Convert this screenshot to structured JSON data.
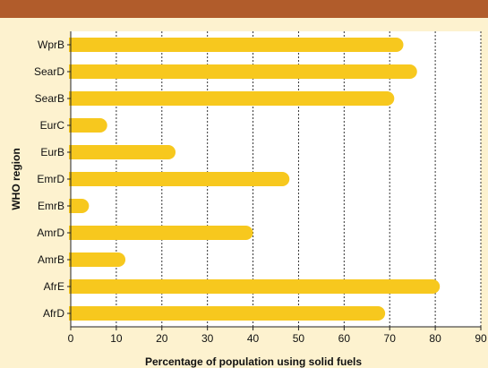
{
  "chart_data": {
    "type": "bar",
    "orientation": "horizontal",
    "categories": [
      "WprB",
      "SearD",
      "SearB",
      "EurC",
      "EurB",
      "EmrD",
      "EmrB",
      "AmrD",
      "AmrB",
      "AfrE",
      "AfrD"
    ],
    "values": [
      73,
      76,
      71,
      8,
      23,
      48,
      4,
      40,
      12,
      81,
      69
    ],
    "xlabel": "Percentage of population using solid fuels",
    "ylabel": "WHO region",
    "xlim": [
      0,
      90
    ],
    "xticks": [
      "0",
      "10",
      "20",
      "30",
      "40",
      "50",
      "60",
      "70",
      "80",
      "90"
    ],
    "grid": "vertical dotted",
    "legend": "none"
  },
  "colors": {
    "background": "#fdf2cf",
    "plot_background": "#ffffff",
    "header_band": "#b15c2b",
    "bar": "#f7c81e"
  }
}
